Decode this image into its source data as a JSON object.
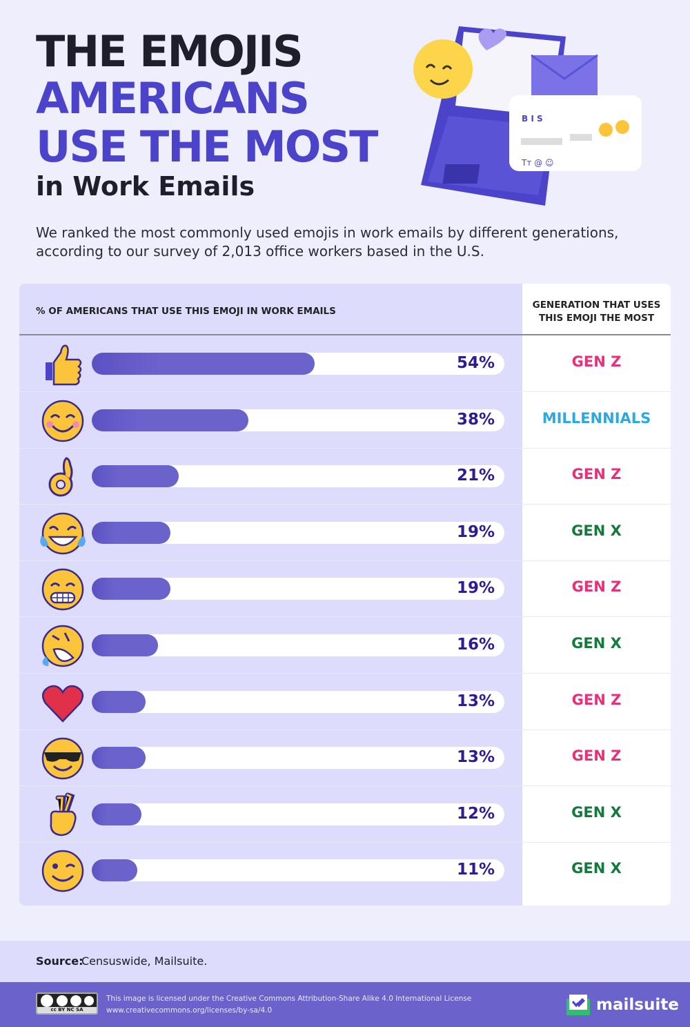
{
  "title": {
    "line1": "THE EMOJIS",
    "line2": "AMERICANS",
    "line3": "USE THE MOST",
    "line4": "in Work Emails"
  },
  "subtitle": "We ranked the most commonly used emojis in work emails by different generations, according to our survey of 2,013 office workers based in the U.S.",
  "hero": {
    "toolbar_text": "B I S",
    "footer_text": "Tт @ ☺"
  },
  "colors": {
    "bar": "#6b63cc",
    "track": "#ffffff",
    "gen_z": "#e8307a",
    "millennials": "#2fa8e0",
    "gen_x": "#137a3c",
    "title_accent": "#4b43c9"
  },
  "chart_data": {
    "type": "bar",
    "orientation": "horizontal",
    "xlim": [
      0,
      100
    ],
    "column_headers": [
      "% OF AMERICANS THAT USE THIS EMOJI IN WORK EMAILS",
      "GENERATION THAT USES THIS EMOJI THE MOST"
    ],
    "categories": [
      "thumbs-up",
      "smiling-face-with-smiling-eyes",
      "ok-hand",
      "face-with-tears-of-joy",
      "grinning-face",
      "rolling-on-the-floor-laughing",
      "red-heart",
      "smiling-face-with-sunglasses",
      "crossed-fingers",
      "winking-face"
    ],
    "values": [
      54,
      38,
      21,
      19,
      19,
      16,
      13,
      13,
      12,
      11
    ],
    "labels": [
      "54%",
      "38%",
      "21%",
      "19%",
      "19%",
      "16%",
      "13%",
      "13%",
      "12%",
      "11%"
    ],
    "generation": [
      "GEN Z",
      "MILLENNIALS",
      "GEN Z",
      "GEN X",
      "GEN Z",
      "GEN X",
      "GEN Z",
      "GEN Z",
      "GEN X",
      "GEN X"
    ]
  },
  "source": {
    "label": "Source:",
    "text": "Censuswide, Mailsuite."
  },
  "footer": {
    "license_line1": "This image is licensed under the Creative Commons Attribution-Share Alike 4.0 International License",
    "license_line2": "www.creativecommons.org/licenses/by-sa/4.0",
    "cc_badge": "cc BY NC SA",
    "brand": "mailsuite"
  }
}
